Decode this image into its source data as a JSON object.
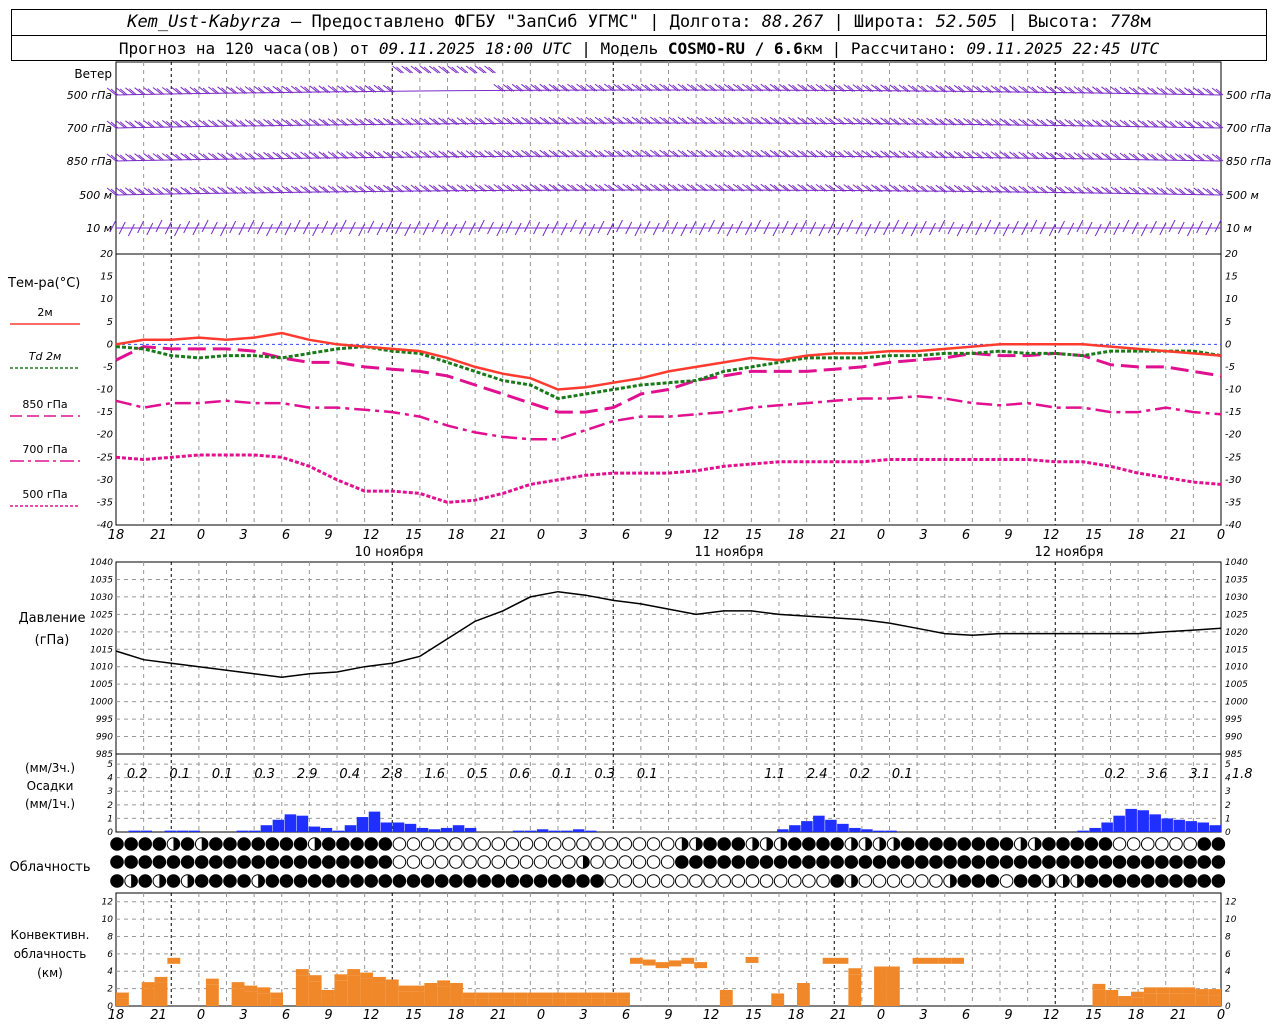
{
  "header": {
    "station": "Kem_Ust-Kabyrza",
    "provider": " — Предоставлено ФГБУ \"ЗапСиб УГМС\" | Долгота: ",
    "lon": "88.267",
    "lat_label": " | Широта: ",
    "lat": "52.505",
    "alt_label": " | Высота: ",
    "alt": "778",
    "alt_unit": "м",
    "forecast_label": "Прогноз на 120 часа(ов) от ",
    "forecast_from": "09.11.2025 18:00 UTC",
    "model_label": " | Модель ",
    "model": "COSMO-RU / 6.6",
    "model_unit": "км",
    "calc_label": " | Рассчитано: ",
    "calc_time": "09.11.2025 22:45 UTC"
  },
  "wind_panel": {
    "title": "Ветер",
    "levels": [
      "500 гПа",
      "700 гПа",
      "850 гПа",
      "500 м",
      "10  м"
    ]
  },
  "temp_panel": {
    "title": "Тем-ра(°С)",
    "legend": [
      "2м",
      "Td  2м",
      "850 гПа",
      "700 гПа",
      "500 гПа"
    ],
    "legend_colors": [
      "#ff3b30",
      "#1a7a1a",
      "#e01090",
      "#e01090",
      "#e01090"
    ],
    "y_ticks": [
      "20",
      "15",
      "10",
      "5",
      "0",
      "-5",
      "-10",
      "-15",
      "-20",
      "-25",
      "-30",
      "-35",
      "-40"
    ]
  },
  "time_axis": {
    "hour_labels": [
      "18",
      "21",
      "0",
      "3",
      "6",
      "9",
      "12",
      "15",
      "18",
      "21",
      "0",
      "3",
      "6",
      "9",
      "12",
      "15",
      "18",
      "21",
      "0",
      "3",
      "6",
      "9",
      "12",
      "15",
      "18",
      "21",
      "0"
    ],
    "day_labels": [
      "10 ноября",
      "11 ноября",
      "12 ноября"
    ]
  },
  "pressure_panel": {
    "title": "Давление",
    "unit": "(гПа)",
    "y_ticks": [
      "1040",
      "1035",
      "1030",
      "1025",
      "1020",
      "1015",
      "1010",
      "1005",
      "1000",
      "995",
      "990",
      "985"
    ]
  },
  "precip_panel": {
    "title_3h": "(мм/3ч.)",
    "title": "Осадки",
    "title_1h": "(мм/1ч.)",
    "y_ticks": [
      "5",
      "4",
      "3",
      "2",
      "1",
      "0"
    ],
    "sums_3h": [
      "0.2",
      "0.1",
      "0.1",
      "0.3",
      "2.9",
      "0.4",
      "2.8",
      "1.6",
      "0.5",
      "0.6",
      "0.1",
      "0.3",
      "0.1",
      "",
      "",
      "1.1",
      "2.4",
      "0.2",
      "0.1",
      "",
      "",
      "",
      "",
      "0.2",
      "3.6",
      "3.1",
      "1.8"
    ]
  },
  "cloud_panel": {
    "title": "Облачность"
  },
  "conv_panel": {
    "title_lines": [
      "Конвективн.",
      "облачность",
      "(км)"
    ],
    "y_ticks": [
      "12",
      "10",
      "8",
      "6",
      "4",
      "2",
      "0"
    ]
  },
  "colors": {
    "wind": "#7a2cc8",
    "t2m": "#ff3b30",
    "td": "#1a7a1a",
    "t_levels": "#e01090",
    "precip": "#1f2fff",
    "conv": "#f0882a",
    "grid": "#999999"
  },
  "chart_data": [
    {
      "type": "line",
      "name": "temperature",
      "x": [
        0,
        1,
        2,
        3,
        4,
        5,
        6,
        7,
        8,
        9,
        10,
        11,
        12,
        13,
        14,
        15,
        16,
        17,
        18,
        19,
        20,
        21,
        22,
        23,
        24,
        25,
        26,
        27,
        28,
        29,
        30,
        31,
        32,
        33,
        34,
        35,
        36,
        37,
        38,
        39,
        40
      ],
      "ylim": [
        -40,
        20
      ],
      "series": [
        {
          "name": "2м",
          "values": [
            0,
            1,
            1,
            1.5,
            1,
            1.5,
            2.5,
            1,
            0,
            -0.5,
            -1,
            -1.5,
            -3,
            -5,
            -6.5,
            -7.5,
            -10,
            -9.5,
            -8.5,
            -7.5,
            -6,
            -5,
            -4,
            -3,
            -3.5,
            -2.5,
            -2,
            -2,
            -1.5,
            -1.5,
            -1,
            -0.5,
            0,
            0,
            0,
            0,
            -0.5,
            -1,
            -1.5,
            -2,
            -2.5
          ]
        },
        {
          "name": "Td  2м",
          "values": [
            -0.5,
            -1,
            -2.5,
            -3,
            -2.5,
            -2.5,
            -3,
            -2,
            -1,
            -0.5,
            -1.5,
            -2,
            -4,
            -6,
            -8,
            -9,
            -12,
            -11,
            -10,
            -9,
            -8.5,
            -8,
            -6,
            -5,
            -4,
            -3,
            -3,
            -3,
            -2.5,
            -2.5,
            -2,
            -2,
            -1.5,
            -2,
            -2,
            -2.5,
            -1.5,
            -1.5,
            -1.5,
            -1.5,
            -2.5
          ]
        },
        {
          "name": "850 гПа",
          "values": [
            -3.5,
            -0.5,
            -1,
            -1,
            -1,
            -1.5,
            -3,
            -4,
            -4,
            -5,
            -5.5,
            -6,
            -7,
            -9,
            -11,
            -13,
            -15,
            -15,
            -14,
            -11,
            -10,
            -8,
            -7,
            -6,
            -6,
            -6,
            -5.5,
            -5,
            -4,
            -3.5,
            -3,
            -2,
            -2.5,
            -2.5,
            -2,
            -2.5,
            -4.5,
            -5,
            -5,
            -6,
            -7
          ]
        },
        {
          "name": "700 гПа",
          "values": [
            -12.5,
            -14,
            -13,
            -13,
            -12.5,
            -13,
            -13,
            -14,
            -14,
            -14.5,
            -15,
            -16,
            -18,
            -19.5,
            -20.5,
            -21,
            -21,
            -19,
            -17,
            -16,
            -16,
            -15.5,
            -15,
            -14,
            -13.5,
            -13,
            -12.5,
            -12,
            -12,
            -11.5,
            -12,
            -13,
            -13.5,
            -13,
            -14,
            -14,
            -15,
            -15,
            -14,
            -15,
            -15.5
          ]
        },
        {
          "name": "500 гПа",
          "values": [
            -25,
            -25.5,
            -25,
            -24.5,
            -24.5,
            -24.5,
            -25,
            -27,
            -30,
            -32.5,
            -32.5,
            -33,
            -35,
            -34.5,
            -33,
            -31,
            -30,
            -29,
            -28.5,
            -28.5,
            -28.5,
            -28,
            -27,
            -26.5,
            -26,
            -26,
            -26,
            -26,
            -25.5,
            -25.5,
            -25.5,
            -25.5,
            -25.5,
            -25.5,
            -26,
            -26,
            -27,
            -28.5,
            -29.5,
            -30.5,
            -31
          ]
        }
      ]
    },
    {
      "type": "line",
      "name": "pressure",
      "x": [
        0,
        1,
        2,
        3,
        4,
        5,
        6,
        7,
        8,
        9,
        10,
        11,
        12,
        13,
        14,
        15,
        16,
        17,
        18,
        19,
        20,
        21,
        22,
        23,
        24,
        25,
        26,
        27,
        28,
        29,
        30,
        31,
        32,
        33,
        34,
        35,
        36,
        37,
        38,
        39,
        40
      ],
      "ylim": [
        985,
        1040
      ],
      "series": [
        {
          "name": "Давление",
          "values": [
            1014.5,
            1012,
            1011,
            1010,
            1009,
            1008,
            1007,
            1008,
            1008.5,
            1010,
            1011,
            1013,
            1018,
            1023,
            1026,
            1030,
            1031.5,
            1030.5,
            1029,
            1028,
            1026.5,
            1025,
            1026,
            1026,
            1025,
            1024.5,
            1024,
            1023.5,
            1022.5,
            1021,
            1019.5,
            1019,
            1019.5,
            1019.5,
            1019.5,
            1019.5,
            1019.5,
            1019.5,
            1020,
            1020.5,
            1021
          ]
        }
      ]
    },
    {
      "type": "bar",
      "name": "precipitation_1h",
      "ylim": [
        0,
        5
      ],
      "values": [
        0,
        0.1,
        0.1,
        0,
        0.1,
        0.1,
        0.1,
        0,
        0,
        0,
        0.1,
        0.1,
        0.5,
        0.9,
        1.3,
        1.2,
        0.4,
        0.3,
        0.1,
        0.5,
        1.1,
        1.5,
        0.7,
        0.7,
        0.6,
        0.3,
        0.2,
        0.3,
        0.5,
        0.3,
        0,
        0,
        0,
        0.1,
        0.1,
        0.2,
        0.1,
        0.1,
        0.2,
        0.1,
        0,
        0,
        0,
        0,
        0,
        0,
        0,
        0,
        0,
        0,
        0,
        0,
        0,
        0,
        0,
        0.2,
        0.5,
        0.8,
        1.2,
        0.9,
        0.6,
        0.3,
        0.2,
        0.1,
        0.1,
        0,
        0,
        0,
        0,
        0,
        0,
        0,
        0,
        0,
        0,
        0,
        0,
        0,
        0,
        0,
        0.1,
        0.3,
        0.7,
        1.2,
        1.7,
        1.6,
        1.3,
        1,
        0.9,
        0.8,
        0.7,
        0.5
      ]
    },
    {
      "type": "bar",
      "name": "convective_cloud_km",
      "ylim": [
        0,
        13
      ],
      "values": [
        1.2,
        0,
        2.4,
        3,
        5.2,
        0,
        0,
        2.8,
        0,
        2.4,
        2,
        1.8,
        1.2,
        0,
        3.9,
        3.2,
        1.5,
        3.3,
        3.9,
        3.5,
        3,
        2.7,
        2,
        2,
        2.3,
        2.6,
        2.3,
        1.2,
        1.2,
        1.2,
        1.2,
        1.2,
        1.2,
        1.2,
        1.2,
        1.2,
        1.2,
        1.2,
        1.2,
        1.2,
        5.2,
        5,
        4.7,
        4.9,
        5.2,
        4.7,
        0,
        1.5,
        0,
        5.3,
        0,
        1.1,
        0,
        2.3,
        0,
        5.2,
        5.2,
        4,
        0,
        4.2,
        4.2,
        0,
        5.2,
        5.2,
        5.2,
        5.2,
        0,
        0,
        0,
        0,
        0,
        0,
        0,
        0,
        0,
        0,
        2.2,
        1.5,
        0.8,
        1.3,
        1.8,
        1.8,
        1.8,
        1.8,
        1.6,
        1.6
      ]
    }
  ]
}
